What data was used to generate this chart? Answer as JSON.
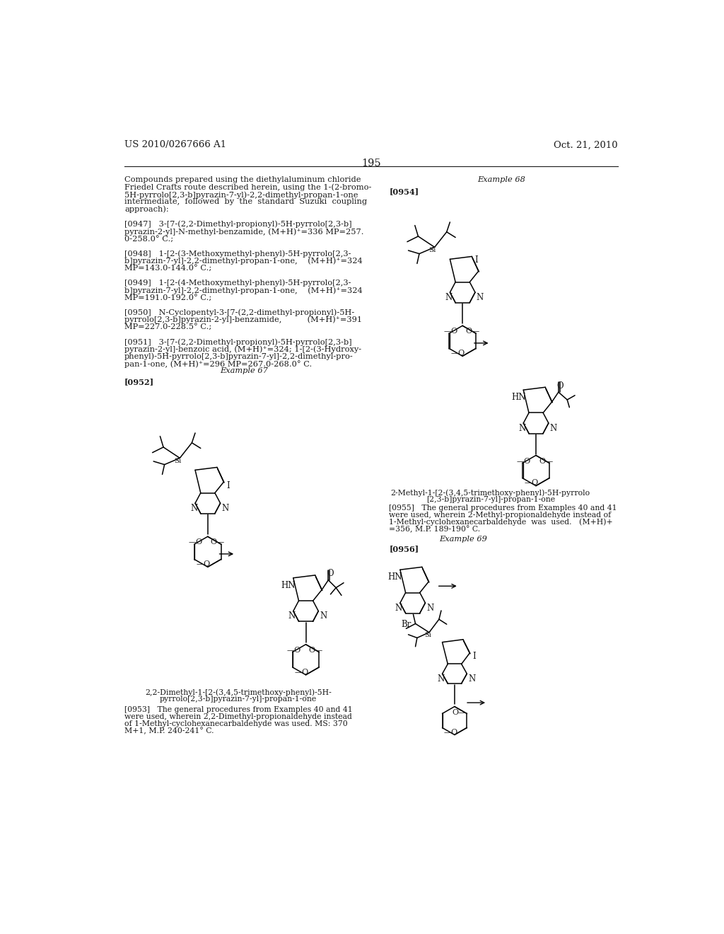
{
  "page_number": "195",
  "patent_number": "US 2010/0267666 A1",
  "patent_date": "Oct. 21, 2010",
  "background_color": "#ffffff",
  "text_color": "#1a1a1a",
  "font_size_body": 8.2,
  "font_size_small": 7.8,
  "font_size_header": 9.5
}
